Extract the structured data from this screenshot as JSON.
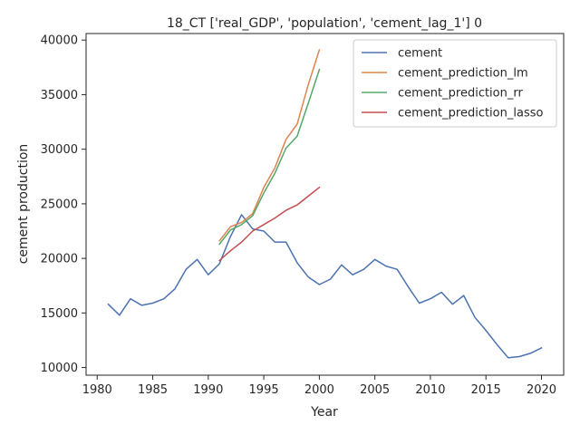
{
  "chart_data": {
    "type": "line",
    "title": "18_CT ['real_GDP', 'population', 'cement_lag_1'] 0",
    "xlabel": "Year",
    "ylabel": "cement production",
    "xlim": [
      1979,
      2022
    ],
    "ylim": [
      9300,
      40600
    ],
    "xticks": [
      1980,
      1985,
      1990,
      1995,
      2000,
      2005,
      2010,
      2015,
      2020
    ],
    "yticks": [
      10000,
      15000,
      20000,
      25000,
      30000,
      35000,
      40000
    ],
    "grid": false,
    "legend_position": "top-right",
    "series": [
      {
        "name": "cement",
        "color": "#4c72b0",
        "x": [
          1981,
          1982,
          1983,
          1984,
          1985,
          1986,
          1987,
          1988,
          1989,
          1990,
          1991,
          1992,
          1993,
          1994,
          1995,
          1996,
          1997,
          1998,
          1999,
          2000,
          2001,
          2002,
          2003,
          2004,
          2005,
          2006,
          2007,
          2008,
          2009,
          2010,
          2011,
          2012,
          2013,
          2014,
          2015,
          2016,
          2017,
          2018,
          2019,
          2020
        ],
        "y": [
          15800,
          14800,
          16300,
          15700,
          15900,
          16300,
          17200,
          19000,
          19900,
          18500,
          19500,
          22000,
          24000,
          22700,
          22500,
          21500,
          21500,
          19600,
          18300,
          17600,
          18100,
          19400,
          18500,
          19000,
          19900,
          19300,
          19000,
          17400,
          15900,
          16300,
          16900,
          15800,
          16600,
          14600,
          13400,
          12100,
          10900,
          11000,
          11300,
          11800
        ]
      },
      {
        "name": "cement_prediction_lm",
        "color": "#dd8452",
        "x": [
          1991,
          1992,
          1993,
          1994,
          1995,
          1996,
          1997,
          1998,
          1999,
          2000
        ],
        "y": [
          21600,
          22900,
          23300,
          24100,
          26500,
          28300,
          30900,
          32300,
          35900,
          39100
        ]
      },
      {
        "name": "cement_prediction_rr",
        "color": "#55a868",
        "x": [
          1991,
          1992,
          1993,
          1994,
          1995,
          1996,
          1997,
          1998,
          1999,
          2000
        ],
        "y": [
          21300,
          22600,
          23100,
          23900,
          26000,
          27800,
          30100,
          31200,
          34200,
          37300
        ]
      },
      {
        "name": "cement_prediction_lasso",
        "color": "#c44e52",
        "x": [
          1991,
          1992,
          1993,
          1994,
          1995,
          1996,
          1997,
          1998,
          1999,
          2000
        ],
        "y": [
          19800,
          20700,
          21500,
          22500,
          23100,
          23700,
          24400,
          24900,
          25700,
          26500
        ]
      }
    ]
  }
}
